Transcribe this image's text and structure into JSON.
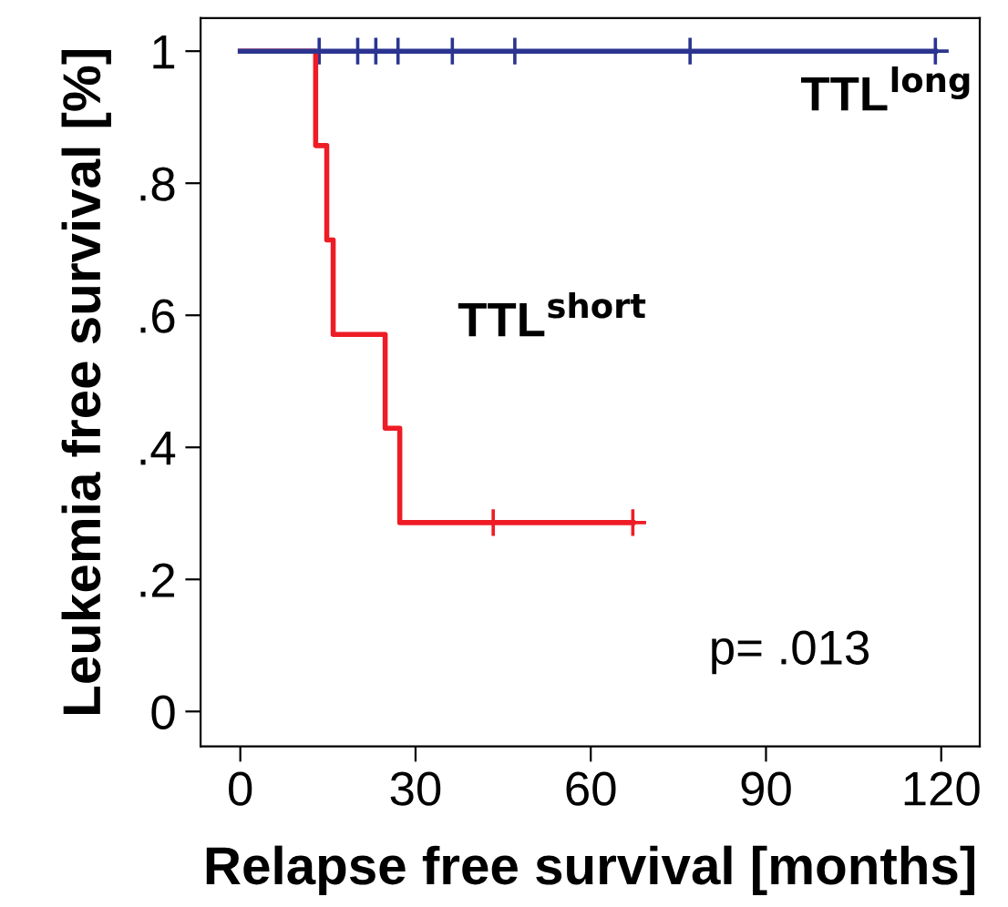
{
  "chart_data": {
    "type": "step",
    "xlabel": "Relapse free survival [months]",
    "ylabel": "Leukemia free survival [%]",
    "xlim": [
      -6.8,
      126.6
    ],
    "ylim": [
      -0.053,
      1.05
    ],
    "xticks": [
      0,
      30,
      60,
      90,
      120
    ],
    "yticks": [
      {
        "value": 0,
        "label": "0"
      },
      {
        "value": 0.2,
        "label": ".2"
      },
      {
        "value": 0.4,
        "label": ".4"
      },
      {
        "value": 0.6,
        "label": ".6"
      },
      {
        "value": 0.8,
        "label": ".8"
      },
      {
        "value": 1,
        "label": "1"
      }
    ],
    "grid": false,
    "annotations": [
      "p= .013"
    ],
    "series": [
      {
        "name": "TTL$^{long}$",
        "color": "#2b3590",
        "x": [
          0,
          119
        ],
        "values": [
          1,
          1
        ]
      },
      {
        "name": "TTL$^{short}$",
        "color": "#ee1c25",
        "x": [
          0,
          12.9,
          14.8,
          15.9,
          24.8,
          27.3,
          67.2
        ],
        "values": [
          1,
          0.857,
          0.714,
          0.571,
          0.429,
          0.286,
          0.286
        ]
      },
      {
        "type": "scatter",
        "marker": "cross",
        "color": "#2b3590",
        "x": [
          13.5,
          20.1,
          23.2,
          27,
          36.3,
          47,
          77,
          119
        ],
        "values": [
          1,
          1,
          1,
          1,
          1,
          1,
          1,
          1
        ]
      },
      {
        "type": "scatter",
        "marker": "cross",
        "color": "#ee1c25",
        "x": [
          43.3,
          67.2
        ],
        "values": [
          0.286,
          0.286
        ]
      }
    ]
  }
}
